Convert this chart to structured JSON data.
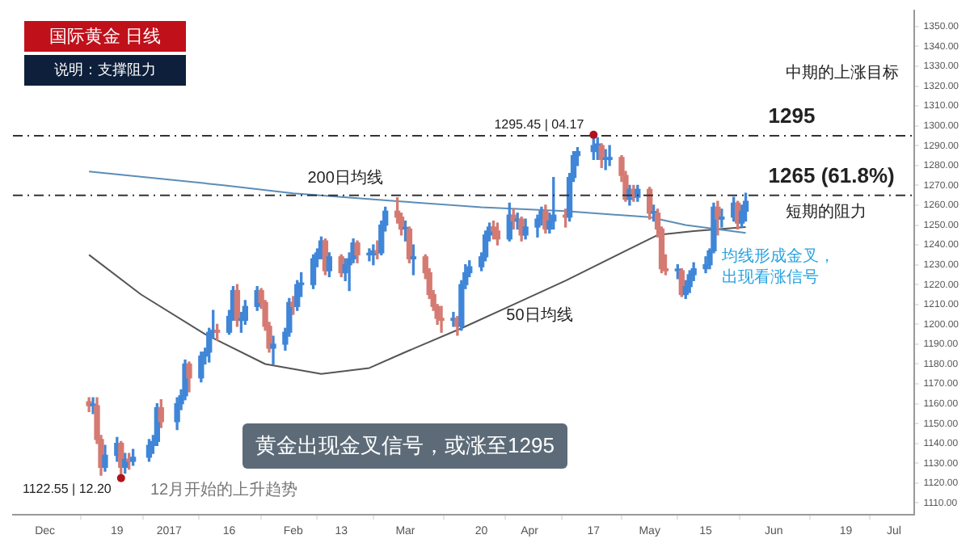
{
  "chart_data": {
    "type": "candlestick",
    "title": "国际黄金  日线",
    "subtitle": "说明：支撑阻力",
    "x": [
      "2016-12-12",
      "2016-12-13",
      "2016-12-14",
      "2016-12-15",
      "2016-12-16",
      "2016-12-19",
      "2016-12-20",
      "2016-12-21",
      "2016-12-22",
      "2016-12-23",
      "2016-12-27",
      "2016-12-28",
      "2016-12-29",
      "2016-12-30",
      "2017-01-03",
      "2017-01-04",
      "2017-01-05",
      "2017-01-06",
      "2017-01-09",
      "2017-01-10",
      "2017-01-11",
      "2017-01-12",
      "2017-01-13",
      "2017-01-16",
      "2017-01-17",
      "2017-01-18",
      "2017-01-19",
      "2017-01-20",
      "2017-01-23",
      "2017-01-24",
      "2017-01-25",
      "2017-01-26",
      "2017-01-27",
      "2017-01-30",
      "2017-01-31",
      "2017-02-01",
      "2017-02-02",
      "2017-02-03",
      "2017-02-06",
      "2017-02-07",
      "2017-02-08",
      "2017-02-09",
      "2017-02-10",
      "2017-02-13",
      "2017-02-14",
      "2017-02-15",
      "2017-02-16",
      "2017-02-17",
      "2017-02-20",
      "2017-02-21",
      "2017-02-22",
      "2017-02-23",
      "2017-02-24",
      "2017-02-27",
      "2017-02-28",
      "2017-03-01",
      "2017-03-02",
      "2017-03-03",
      "2017-03-06",
      "2017-03-07",
      "2017-03-08",
      "2017-03-09",
      "2017-03-10",
      "2017-03-13",
      "2017-03-14",
      "2017-03-15",
      "2017-03-16",
      "2017-03-17",
      "2017-03-20",
      "2017-03-21",
      "2017-03-22",
      "2017-03-23",
      "2017-03-24",
      "2017-03-27",
      "2017-03-28",
      "2017-03-29",
      "2017-03-30",
      "2017-03-31",
      "2017-04-03",
      "2017-04-04",
      "2017-04-05",
      "2017-04-06",
      "2017-04-07",
      "2017-04-10",
      "2017-04-11",
      "2017-04-12",
      "2017-04-13",
      "2017-04-17",
      "2017-04-18",
      "2017-04-19",
      "2017-04-20",
      "2017-04-21",
      "2017-04-24",
      "2017-04-25",
      "2017-04-26",
      "2017-04-27",
      "2017-04-28",
      "2017-05-01",
      "2017-05-02",
      "2017-05-03",
      "2017-05-04",
      "2017-05-05",
      "2017-05-08",
      "2017-05-09",
      "2017-05-10",
      "2017-05-11",
      "2017-05-12",
      "2017-05-15",
      "2017-05-16",
      "2017-05-17",
      "2017-05-18",
      "2017-05-19",
      "2017-05-22",
      "2017-05-23",
      "2017-05-24",
      "2017-05-25"
    ],
    "ohlc": [
      [
        1161,
        1163,
        1156,
        1159
      ],
      [
        1159,
        1163,
        1155,
        1159
      ],
      [
        1159,
        1163,
        1140,
        1142
      ],
      [
        1142,
        1144,
        1124,
        1128
      ],
      [
        1128,
        1139,
        1126,
        1134
      ],
      [
        1134,
        1143,
        1131,
        1140
      ],
      [
        1140,
        1141,
        1122.55,
        1128
      ],
      [
        1128,
        1135,
        1125,
        1132
      ],
      [
        1132,
        1135,
        1127,
        1131
      ],
      [
        1131,
        1137,
        1129,
        1133
      ],
      [
        1133,
        1142,
        1131,
        1139
      ],
      [
        1139,
        1144,
        1135,
        1141
      ],
      [
        1141,
        1160,
        1139,
        1158
      ],
      [
        1158,
        1162,
        1148,
        1151
      ],
      [
        1151,
        1163,
        1147,
        1160
      ],
      [
        1160,
        1167,
        1157,
        1164
      ],
      [
        1164,
        1182,
        1162,
        1180
      ],
      [
        1180,
        1181,
        1166,
        1173
      ],
      [
        1173,
        1186,
        1171,
        1184
      ],
      [
        1184,
        1188,
        1180,
        1186
      ],
      [
        1186,
        1198,
        1181,
        1196
      ],
      [
        1196,
        1207,
        1193,
        1197
      ],
      [
        1197,
        1200,
        1192,
        1196
      ],
      [
        1196,
        1207,
        1195,
        1204
      ],
      [
        1204,
        1219,
        1202,
        1217
      ],
      [
        1217,
        1220,
        1199,
        1202
      ],
      [
        1202,
        1206,
        1196,
        1202
      ],
      [
        1202,
        1212,
        1200,
        1209
      ],
      [
        1209,
        1219,
        1207,
        1217
      ],
      [
        1217,
        1218,
        1208,
        1211
      ],
      [
        1211,
        1212,
        1197,
        1199
      ],
      [
        1199,
        1201,
        1186,
        1188
      ],
      [
        1188,
        1194,
        1180,
        1190
      ],
      [
        1190,
        1198,
        1187,
        1196
      ],
      [
        1196,
        1213,
        1194,
        1211
      ],
      [
        1211,
        1214,
        1205,
        1209
      ],
      [
        1209,
        1222,
        1207,
        1220
      ],
      [
        1220,
        1226,
        1214,
        1220
      ],
      [
        1220,
        1235,
        1218,
        1233
      ],
      [
        1233,
        1238,
        1229,
        1236
      ],
      [
        1236,
        1244,
        1233,
        1242
      ],
      [
        1242,
        1243,
        1225,
        1227
      ],
      [
        1227,
        1236,
        1224,
        1234
      ],
      [
        1234,
        1235,
        1224,
        1226
      ],
      [
        1226,
        1233,
        1222,
        1230
      ],
      [
        1230,
        1236,
        1217,
        1233
      ],
      [
        1233,
        1243,
        1231,
        1241
      ],
      [
        1241,
        1242,
        1231,
        1235
      ],
      [
        1235,
        1238,
        1232,
        1235
      ],
      [
        1235,
        1240,
        1230,
        1237
      ],
      [
        1237,
        1242,
        1233,
        1236
      ],
      [
        1236,
        1252,
        1235,
        1250
      ],
      [
        1250,
        1259,
        1247,
        1257
      ],
      [
        1257,
        1263.8,
        1251,
        1254
      ],
      [
        1254,
        1256,
        1245,
        1248
      ],
      [
        1248,
        1252,
        1242,
        1248
      ],
      [
        1248,
        1249,
        1231,
        1233
      ],
      [
        1233,
        1240,
        1225,
        1234
      ],
      [
        1234,
        1235,
        1223,
        1226
      ],
      [
        1226,
        1228,
        1213,
        1215
      ],
      [
        1215,
        1217,
        1207,
        1209
      ],
      [
        1209,
        1210,
        1200,
        1203
      ],
      [
        1203,
        1209,
        1196,
        1202
      ],
      [
        1202,
        1206,
        1199,
        1203
      ],
      [
        1203,
        1204,
        1194.5,
        1199
      ],
      [
        1199,
        1222,
        1197,
        1220
      ],
      [
        1220,
        1230,
        1218,
        1226
      ],
      [
        1226,
        1232,
        1224,
        1229
      ],
      [
        1229,
        1236,
        1227,
        1234
      ],
      [
        1234,
        1247,
        1232,
        1245
      ],
      [
        1245,
        1251,
        1242,
        1249
      ],
      [
        1249,
        1252,
        1243,
        1247
      ],
      [
        1247,
        1251,
        1240,
        1243
      ],
      [
        1243,
        1261,
        1242,
        1255
      ],
      [
        1255,
        1258,
        1248,
        1252
      ],
      [
        1252,
        1256,
        1248,
        1253
      ],
      [
        1253,
        1254,
        1242,
        1245
      ],
      [
        1245,
        1253,
        1243,
        1249
      ],
      [
        1249,
        1255,
        1244,
        1253
      ],
      [
        1253,
        1259,
        1250,
        1257
      ],
      [
        1257,
        1260,
        1246,
        1248
      ],
      [
        1248,
        1256,
        1246,
        1252
      ],
      [
        1252,
        1274,
        1248,
        1255
      ],
      [
        1255,
        1258,
        1249,
        1254
      ],
      [
        1254,
        1276,
        1252,
        1274
      ],
      [
        1274,
        1287,
        1272,
        1285
      ],
      [
        1285,
        1289,
        1280,
        1287
      ],
      [
        1287,
        1295.45,
        1283,
        1290
      ],
      [
        1290,
        1294,
        1283,
        1290
      ],
      [
        1290,
        1291,
        1279,
        1283
      ],
      [
        1283,
        1288,
        1278,
        1283
      ],
      [
        1283,
        1290,
        1280,
        1284
      ],
      [
        1284,
        1285,
        1272,
        1275
      ],
      [
        1275,
        1277,
        1262,
        1263
      ],
      [
        1263,
        1270,
        1260,
        1268
      ],
      [
        1268,
        1270,
        1262,
        1264
      ],
      [
        1264,
        1270,
        1262,
        1268
      ],
      [
        1268,
        1269,
        1253,
        1256
      ],
      [
        1256,
        1260,
        1252,
        1256
      ],
      [
        1256,
        1258,
        1244,
        1248
      ],
      [
        1248,
        1249,
        1226,
        1228
      ],
      [
        1228,
        1235,
        1225,
        1227
      ],
      [
        1227,
        1230,
        1223,
        1227
      ],
      [
        1227,
        1228,
        1214,
        1215
      ],
      [
        1215,
        1222,
        1213,
        1219
      ],
      [
        1219,
        1227,
        1216,
        1225
      ],
      [
        1225,
        1231,
        1222,
        1228
      ],
      [
        1228,
        1234,
        1226,
        1230
      ],
      [
        1230,
        1238,
        1228,
        1237
      ],
      [
        1237,
        1261,
        1236,
        1259
      ],
      [
        1259,
        1262,
        1245,
        1253
      ],
      [
        1253,
        1258,
        1249,
        1254
      ],
      [
        1254,
        1264,
        1252,
        1261
      ],
      [
        1261,
        1262,
        1248,
        1251
      ],
      [
        1251,
        1260,
        1249,
        1257
      ],
      [
        1257,
        1266,
        1252,
        1262
      ]
    ],
    "series": [
      {
        "name": "200日均线",
        "type": "line",
        "color": "#5b8db8",
        "x": [
          "2016-12-12",
          "2017-01-15",
          "2017-02-01",
          "2017-02-27",
          "2017-03-20",
          "2017-04-10",
          "2017-05-01",
          "2017-05-10",
          "2017-05-25"
        ],
        "values": [
          1277,
          1270,
          1266,
          1262,
          1259,
          1257,
          1254,
          1250,
          1246
        ]
      },
      {
        "name": "50日均线",
        "type": "line",
        "color": "#555555",
        "x": [
          "2016-12-12",
          "2016-12-25",
          "2017-01-10",
          "2017-01-25",
          "2017-02-08",
          "2017-02-20",
          "2017-03-01",
          "2017-03-15",
          "2017-03-28",
          "2017-04-10",
          "2017-04-24",
          "2017-05-03",
          "2017-05-12",
          "2017-05-25"
        ],
        "values": [
          1235,
          1215,
          1195,
          1180,
          1175,
          1178,
          1186,
          1198,
          1210,
          1222,
          1236,
          1245,
          1247,
          1249
        ]
      }
    ],
    "xlim": [
      "2016-11-23",
      "2017-07-06"
    ],
    "xticks": [
      {
        "value": "2016-12-01",
        "label": "Dec"
      },
      {
        "value": "2016-12-19",
        "label": "19"
      },
      {
        "value": "2017-01-01",
        "label": "2017"
      },
      {
        "value": "2017-01-16",
        "label": "16"
      },
      {
        "value": "2017-02-01",
        "label": "Feb"
      },
      {
        "value": "2017-02-13",
        "label": "13"
      },
      {
        "value": "2017-03-01",
        "label": "Mar"
      },
      {
        "value": "2017-03-20",
        "label": "20"
      },
      {
        "value": "2017-04-01",
        "label": "Apr"
      },
      {
        "value": "2017-04-17",
        "label": "17"
      },
      {
        "value": "2017-05-01",
        "label": "May"
      },
      {
        "value": "2017-05-15",
        "label": "15"
      },
      {
        "value": "2017-06-01",
        "label": "Jun"
      },
      {
        "value": "2017-06-19",
        "label": "19"
      },
      {
        "value": "2017-07-01",
        "label": "Jul"
      }
    ],
    "ylim": [
      1104,
      1358
    ],
    "yticks": [
      {
        "value": 1110,
        "label": "1110.00"
      },
      {
        "value": 1120,
        "label": "1120.00"
      },
      {
        "value": 1130,
        "label": "1130.00"
      },
      {
        "value": 1140,
        "label": "1140.00"
      },
      {
        "value": 1150,
        "label": "1150.00"
      },
      {
        "value": 1160,
        "label": "1160.00"
      },
      {
        "value": 1170,
        "label": "1170.00"
      },
      {
        "value": 1180,
        "label": "1180.00"
      },
      {
        "value": 1190,
        "label": "1190.00"
      },
      {
        "value": 1200,
        "label": "1200.00"
      },
      {
        "value": 1210,
        "label": "1210.00"
      },
      {
        "value": 1220,
        "label": "1220.00"
      },
      {
        "value": 1230,
        "label": "1230.00"
      },
      {
        "value": 1240,
        "label": "1240.00"
      },
      {
        "value": 1250,
        "label": "1250.00"
      },
      {
        "value": 1260,
        "label": "1260.00"
      },
      {
        "value": 1270,
        "label": "1270.00"
      },
      {
        "value": 1280,
        "label": "1280.00"
      },
      {
        "value": 1290,
        "label": "1290.00"
      },
      {
        "value": 1300,
        "label": "1300.00"
      },
      {
        "value": 1310,
        "label": "1310.00"
      },
      {
        "value": 1320,
        "label": "1320.00"
      },
      {
        "value": 1330,
        "label": "1330.00"
      },
      {
        "value": 1340,
        "label": "1340.00"
      },
      {
        "value": 1350,
        "label": "1350.00"
      }
    ],
    "ref_lines": [
      {
        "axis": "y",
        "value": 1295,
        "label": "1295",
        "color": "#333333",
        "line_style": "dashed"
      },
      {
        "axis": "y",
        "value": 1265,
        "label": "1265 (61.8%)",
        "color": "#333333",
        "line_style": "dashed"
      }
    ],
    "annotations": [
      {
        "text": "1122.55 | 12.20",
        "x": "2016-12-20",
        "y": 1122.55
      },
      {
        "text": "1295.45 | 04.17",
        "x": "2017-04-17",
        "y": 1295.45
      },
      {
        "text": "均线形成金叉，出现看涨信号",
        "x": "2017-05-19",
        "y": 1234
      },
      "12月开始的上升趋势",
      "中期的上涨目标",
      "短期的阻力",
      "黄金出现金叉信号，或涨至1295"
    ]
  }
}
